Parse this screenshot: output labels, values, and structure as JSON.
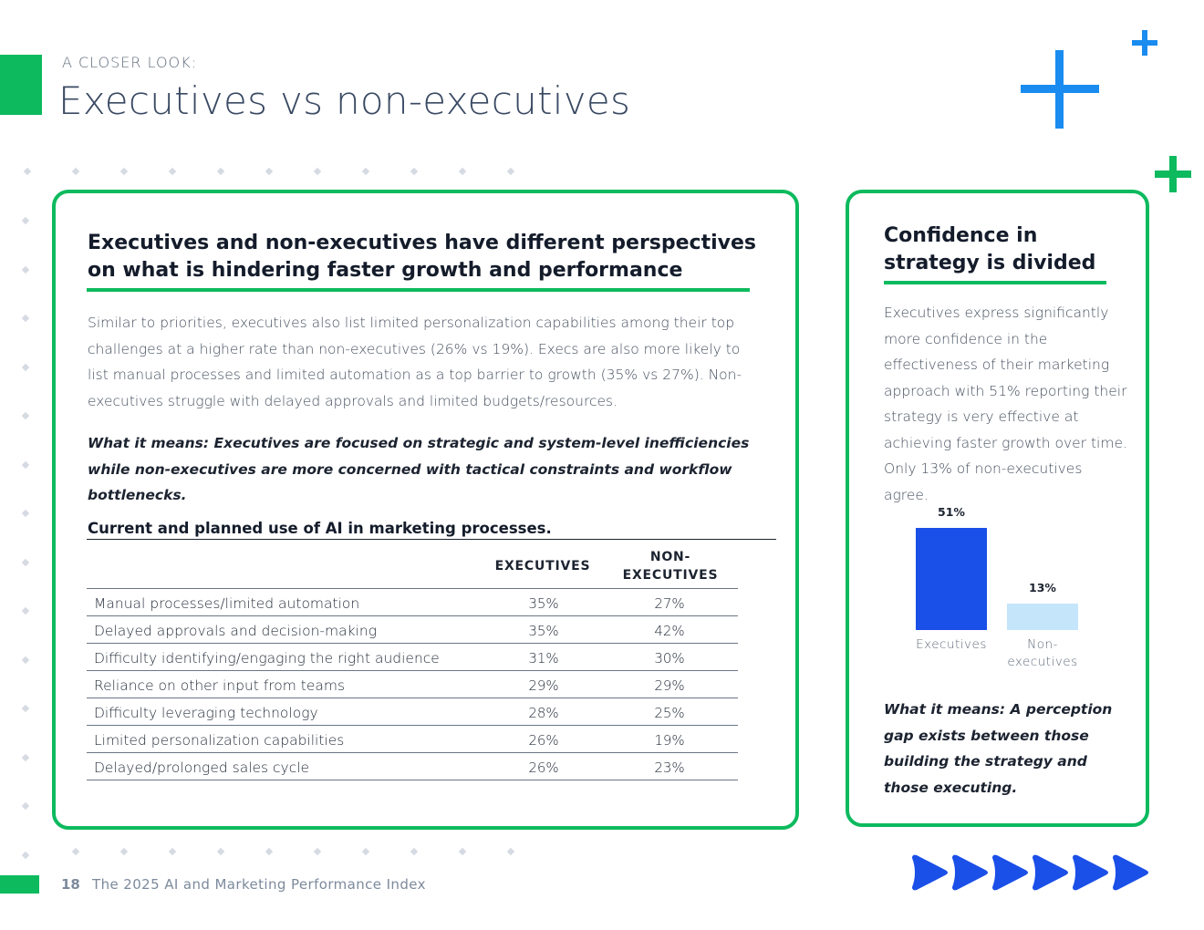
{
  "header": {
    "eyebrow": "A CLOSER LOOK:",
    "title": "Executives vs non-executives"
  },
  "main": {
    "heading": "Executives and non-executives have different perspectives on what is hindering faster growth and performance",
    "body": "Similar to priorities, executives also list limited personalization capabilities among their top challenges at a higher rate than non-executives (26% vs 19%). Execs are also more likely to list manual processes and limited automation as a top barrier to growth (35% vs 27%). Non-executives struggle with delayed approvals and limited budgets/resources.",
    "what_it_means": "What it means: Executives are focused on strategic and system-level inefficiencies while non-executives are more concerned with tactical constraints and workflow bottlenecks.",
    "table": {
      "title": "Current and planned use of AI in marketing processes.",
      "col_exec": "EXECUTIVES",
      "col_non_line1": "NON-",
      "col_non_line2": "EXECUTIVES",
      "rows": [
        {
          "label": "Manual processes/limited automation",
          "exec": "35%",
          "non": "27%"
        },
        {
          "label": "Delayed approvals and decision-making",
          "exec": "35%",
          "non": "42%"
        },
        {
          "label": "Difficulty identifying/engaging the right audience",
          "exec": "31%",
          "non": "30%"
        },
        {
          "label": "Reliance on other input from teams",
          "exec": "29%",
          "non": "29%"
        },
        {
          "label": "Difficulty leveraging technology",
          "exec": "28%",
          "non": "25%"
        },
        {
          "label": "Limited personalization capabilities",
          "exec": "26%",
          "non": "19%"
        },
        {
          "label": "Delayed/prolonged sales cycle",
          "exec": "26%",
          "non": "23%"
        }
      ]
    }
  },
  "side": {
    "heading": "Confidence in strategy is divided",
    "body": "Executives express significantly more confidence in the effectiveness of their marketing approach with 51% reporting their strategy is very effective at achieving faster growth over time. Only 13% of non-executives agree.",
    "what_it_means": "What it means: A perception gap exists between those building the strategy and those executing."
  },
  "chart_data": {
    "type": "bar",
    "title": "",
    "categories": [
      "Executives",
      "Non-executives"
    ],
    "category_lines": [
      [
        "Executives"
      ],
      [
        "Non-",
        "executives"
      ]
    ],
    "values": [
      51,
      13
    ],
    "value_labels": [
      "51%",
      "13%"
    ],
    "colors": [
      "#1a4fe8",
      "#c5e5fb"
    ],
    "ylim": [
      0,
      51
    ],
    "xlabel": "",
    "ylabel": "",
    "grid": false
  },
  "footer": {
    "page_number": "18",
    "title": "The 2025 AI and Marketing Performance Index"
  },
  "colors": {
    "accent_green": "#0dba5e",
    "accent_blue": "#1a8cf0",
    "arrow_blue": "#1a4fe8"
  }
}
